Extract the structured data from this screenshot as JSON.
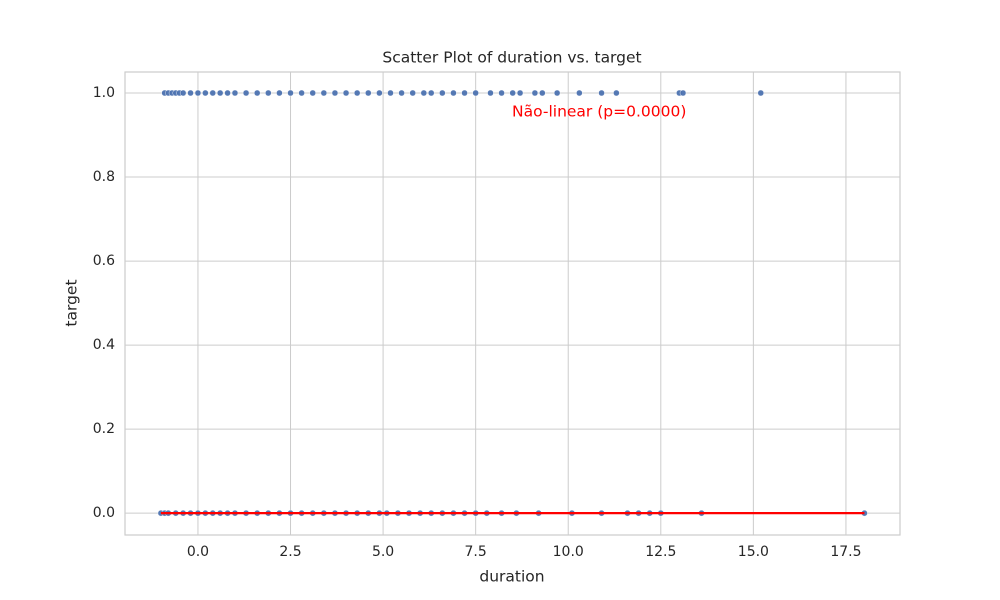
{
  "chart_data": {
    "type": "scatter",
    "title": "Scatter Plot of duration vs. target",
    "xlabel": "duration",
    "ylabel": "target",
    "annotation": {
      "text": "Não-linear (p=0.0000)",
      "color": "red"
    },
    "xlim": [
      -1.97,
      18.96
    ],
    "xticks": [
      {
        "value": 0,
        "label": "0.0"
      },
      2.5,
      {
        "value": 5,
        "label": "5.0"
      },
      7.5,
      {
        "value": 10,
        "label": "10.0"
      },
      12.5,
      {
        "value": 15,
        "label": "15.0"
      },
      17.5
    ],
    "ylim": [
      -0.052,
      1.05
    ],
    "yticks": [
      {
        "value": 0,
        "label": "0.0"
      },
      0.2,
      0.4,
      0.6,
      0.8,
      {
        "value": 1,
        "label": "1.0"
      }
    ],
    "grid": true,
    "series": [
      {
        "color": "#4c72b0",
        "x": [
          -0.9,
          -0.8,
          -0.7,
          -0.6,
          -0.5,
          -0.4,
          -0.2,
          0,
          0.2,
          0.4,
          0.6,
          0.8,
          1.0,
          1.3,
          1.6,
          1.9,
          2.2,
          2.5,
          2.8,
          3.1,
          3.4,
          3.7,
          4.0,
          4.3,
          4.6,
          4.9,
          5.2,
          5.5,
          5.8,
          6.1,
          6.3,
          6.6,
          6.9,
          7.2,
          7.5,
          7.9,
          8.2,
          8.5,
          8.7,
          9.1,
          9.3,
          9.7,
          10.3,
          10.9,
          11.3,
          13.0,
          13.1,
          15.2
        ],
        "values": [
          1,
          1,
          1,
          1,
          1,
          1,
          1,
          1,
          1,
          1,
          1,
          1,
          1,
          1,
          1,
          1,
          1,
          1,
          1,
          1,
          1,
          1,
          1,
          1,
          1,
          1,
          1,
          1,
          1,
          1,
          1,
          1,
          1,
          1,
          1,
          1,
          1,
          1,
          1,
          1,
          1,
          1,
          1,
          1,
          1,
          1,
          1,
          1
        ]
      },
      {
        "color": "#4c72b0",
        "x": [
          -1.0,
          -0.9,
          -0.8,
          -0.6,
          -0.4,
          -0.2,
          0,
          0.2,
          0.4,
          0.6,
          0.8,
          1.0,
          1.3,
          1.6,
          1.9,
          2.2,
          2.5,
          2.8,
          3.1,
          3.4,
          3.7,
          4.0,
          4.3,
          4.6,
          4.9,
          5.1,
          5.4,
          5.7,
          6.0,
          6.3,
          6.6,
          6.9,
          7.2,
          7.5,
          7.8,
          8.2,
          8.6,
          9.2,
          10.1,
          10.9,
          11.6,
          11.9,
          12.2,
          12.5,
          13.6,
          18.0
        ],
        "values": [
          0,
          0,
          0,
          0,
          0,
          0,
          0,
          0,
          0,
          0,
          0,
          0,
          0,
          0,
          0,
          0,
          0,
          0,
          0,
          0,
          0,
          0,
          0,
          0,
          0,
          0,
          0,
          0,
          0,
          0,
          0,
          0,
          0,
          0,
          0,
          0,
          0,
          0,
          0,
          0,
          0,
          0,
          0,
          0,
          0,
          0
        ]
      }
    ],
    "fit": {
      "color": "red",
      "x": [
        -1.0,
        18.0
      ],
      "y": [
        0,
        0
      ]
    }
  }
}
